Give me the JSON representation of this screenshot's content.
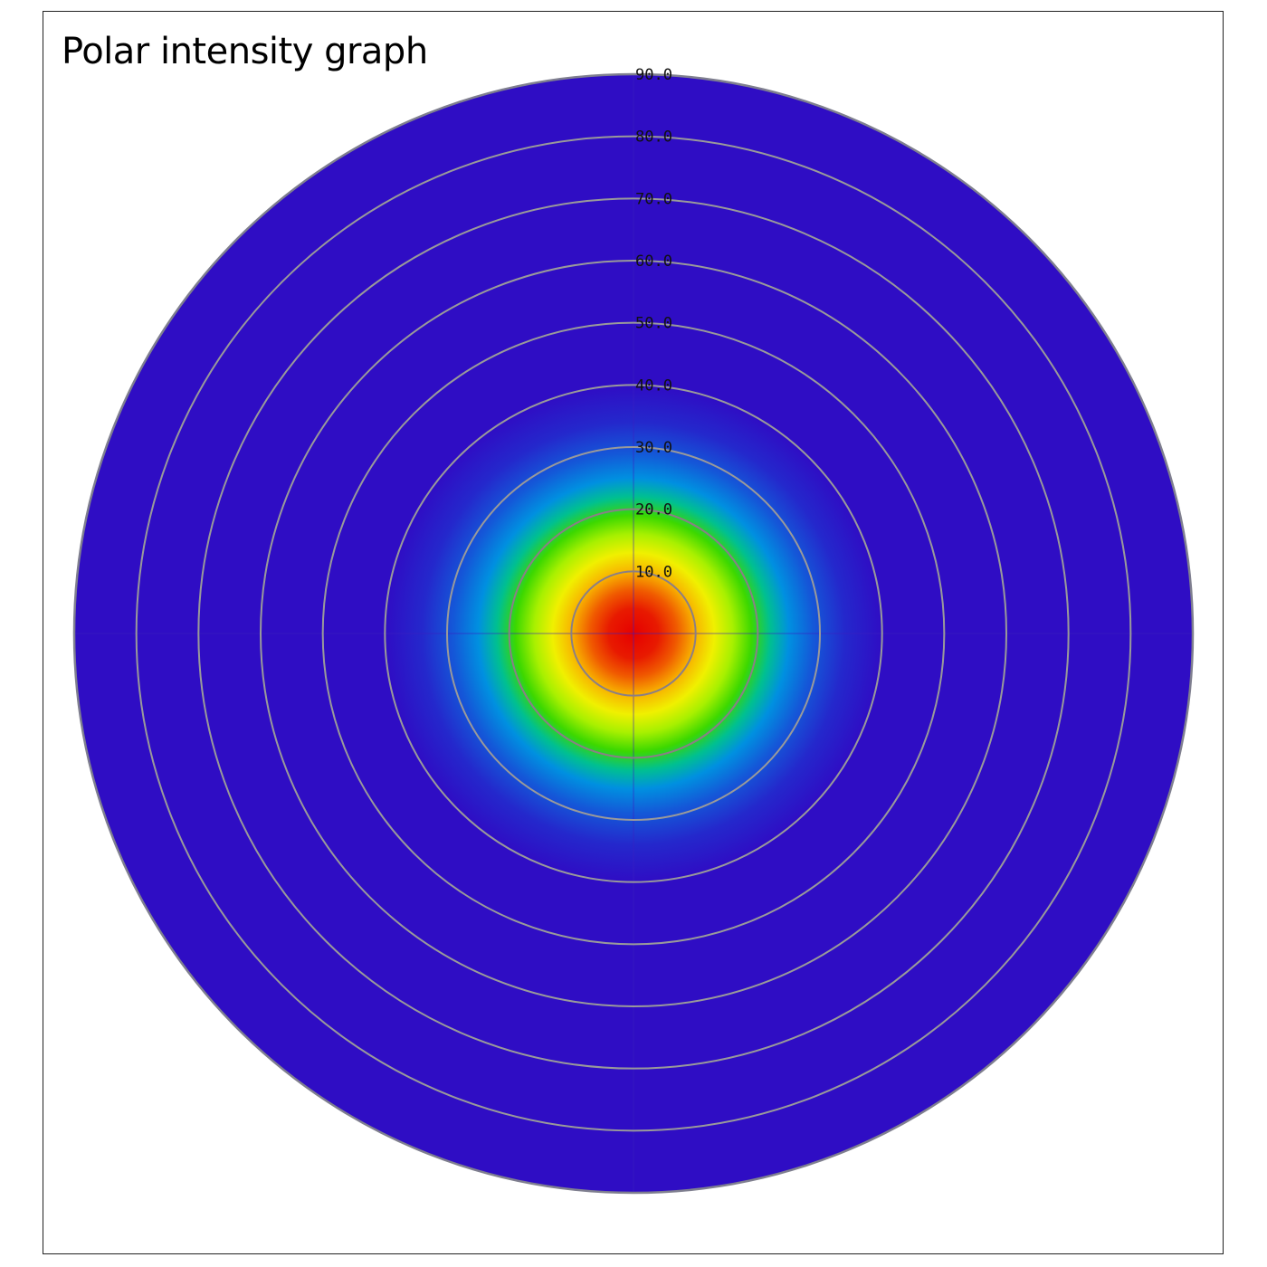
{
  "chart_data": {
    "type": "heatmap",
    "subtype": "polar",
    "title": "Polar intensity graph",
    "radial_ticks": [
      "10.0",
      "20.0",
      "30.0",
      "40.0",
      "50.0",
      "60.0",
      "70.0",
      "80.0",
      "90.0"
    ],
    "radial_values": [
      10,
      20,
      30,
      40,
      50,
      60,
      70,
      80,
      90
    ],
    "rlim": [
      0,
      90
    ],
    "grid": true,
    "colormap": "rainbow",
    "colors": {
      "background": "#2f0dc4",
      "grid": "#9a9a9a",
      "grid_inner": "#8a7f86",
      "outline": "#7f7f8f"
    },
    "intensity_profile": {
      "stops": [
        {
          "r": 0,
          "color": "#e60000"
        },
        {
          "r": 4,
          "color": "#e81a00"
        },
        {
          "r": 7,
          "color": "#f05a00"
        },
        {
          "r": 10,
          "color": "#f8b400"
        },
        {
          "r": 13,
          "color": "#f0f000"
        },
        {
          "r": 16,
          "color": "#a8f000"
        },
        {
          "r": 19,
          "color": "#3cd800"
        },
        {
          "r": 22,
          "color": "#00c090"
        },
        {
          "r": 25,
          "color": "#0090e0"
        },
        {
          "r": 29,
          "color": "#1458d8"
        },
        {
          "r": 34,
          "color": "#2428cc"
        },
        {
          "r": 40,
          "color": "#2f0dc4"
        }
      ]
    }
  }
}
